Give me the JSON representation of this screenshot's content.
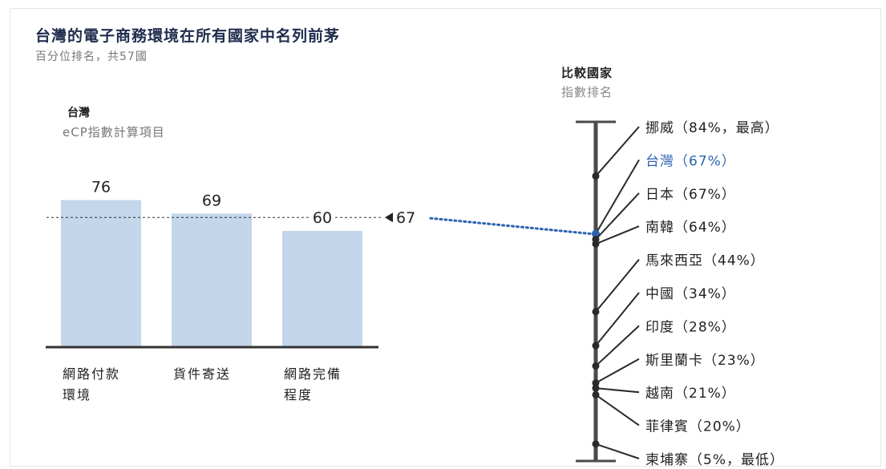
{
  "title": "台灣的電子商務環境在所有國家中名列前茅",
  "subtitle": "百分位排名，共57國",
  "left_panel": {
    "country": "台灣",
    "heading": "eCP指數計算項目",
    "categories": [
      {
        "line1": "網路付款",
        "line2": "環境"
      },
      {
        "line1": "貨件寄送",
        "line2": ""
      },
      {
        "line1": "網路完備",
        "line2": "程度"
      }
    ]
  },
  "right_panel": {
    "heading": "比較國家",
    "subheading": "指數排名"
  },
  "colors": {
    "bar": "#c3d6ea",
    "highlight": "#2d62b0",
    "axis": "#555555",
    "text": "#222222"
  },
  "chart_data": [
    {
      "type": "bar",
      "categories": [
        "網路付款環境",
        "貨件寄送",
        "網路完備程度"
      ],
      "values": [
        76,
        69,
        60
      ],
      "value_labels": [
        "76",
        "69",
        "60"
      ],
      "reference_line": {
        "value": 67,
        "label": "67",
        "style": "dashed"
      },
      "ylim": [
        0,
        100
      ]
    },
    {
      "type": "scatter",
      "orientation": "vertical",
      "ylim": [
        0,
        100
      ],
      "points": [
        {
          "label": "挪威（84%，最高）",
          "value": 84,
          "highlight": false
        },
        {
          "label": "台灣（67%）",
          "value": 67,
          "highlight": true
        },
        {
          "label": "日本（67%）",
          "value": 67,
          "highlight": false
        },
        {
          "label": "南韓（64%）",
          "value": 64,
          "highlight": false
        },
        {
          "label": "馬來西亞（44%）",
          "value": 44,
          "highlight": false
        },
        {
          "label": "中國（34%）",
          "value": 34,
          "highlight": false
        },
        {
          "label": "印度（28%）",
          "value": 28,
          "highlight": false
        },
        {
          "label": "斯里蘭卡（23%）",
          "value": 23,
          "highlight": false
        },
        {
          "label": "越南（21%）",
          "value": 21,
          "highlight": false
        },
        {
          "label": "菲律賓（20%）",
          "value": 20,
          "highlight": false
        },
        {
          "label": "柬埔寨（5%，最低）",
          "value": 5,
          "highlight": false
        }
      ]
    }
  ]
}
